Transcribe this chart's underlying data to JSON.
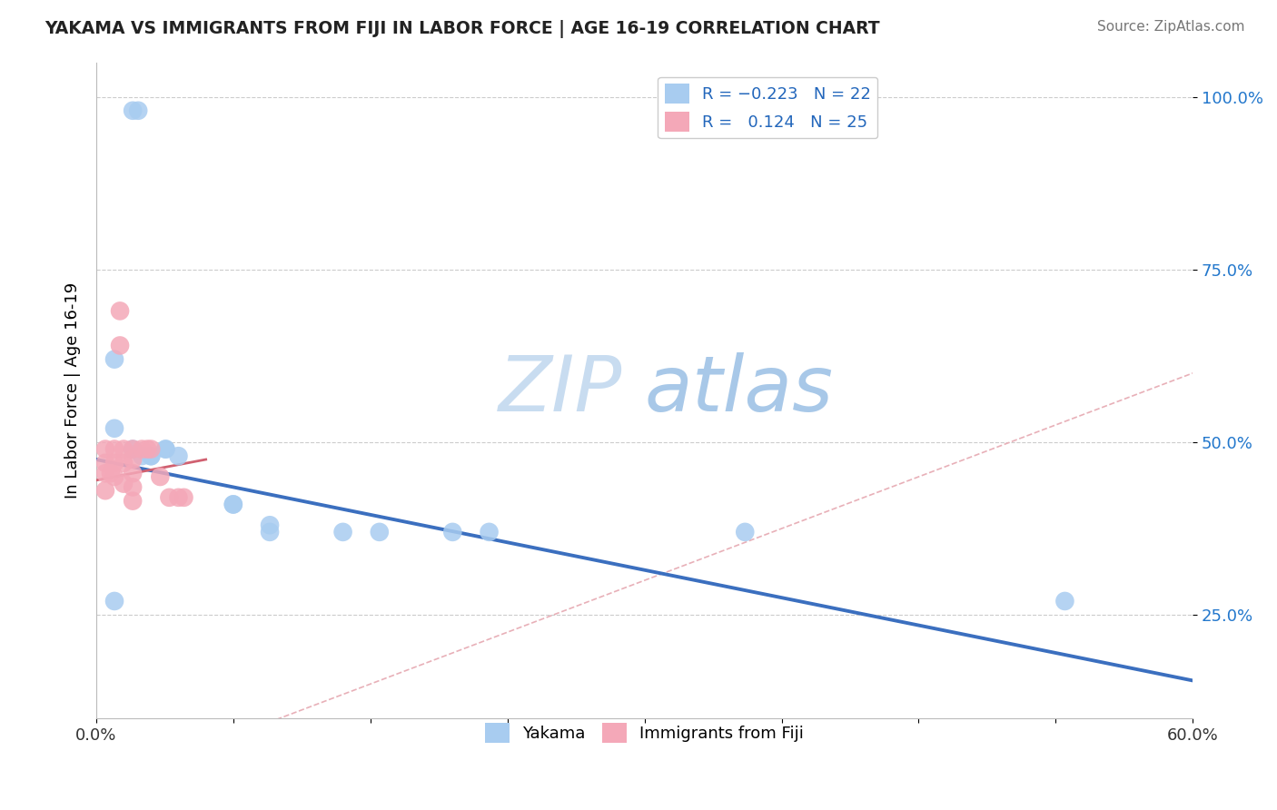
{
  "title": "YAKAMA VS IMMIGRANTS FROM FIJI IN LABOR FORCE | AGE 16-19 CORRELATION CHART",
  "source": "Source: ZipAtlas.com",
  "ylabel": "In Labor Force | Age 16-19",
  "xlim": [
    0.0,
    0.6
  ],
  "ylim": [
    0.1,
    1.05
  ],
  "xticks": [
    0.0,
    0.075,
    0.15,
    0.225,
    0.3,
    0.375,
    0.45,
    0.525,
    0.6
  ],
  "xticklabels": [
    "0.0%",
    "",
    "",
    "",
    "",
    "",
    "",
    "",
    "60.0%"
  ],
  "yticks": [
    0.25,
    0.5,
    0.75,
    1.0
  ],
  "yticklabels": [
    "25.0%",
    "50.0%",
    "75.0%",
    "100.0%"
  ],
  "blue_color": "#A8CCF0",
  "pink_color": "#F4A8B8",
  "trend_blue": "#3B6FBF",
  "trend_pink": "#D06070",
  "diag_color": "#E8B0B8",
  "diag_style": "--",
  "watermark_zip": "ZIP",
  "watermark_atlas": "atlas",
  "watermark_color_zip": "#C8DCF0",
  "watermark_color_atlas": "#A8C8E8",
  "blue_scatter_x": [
    0.02,
    0.023,
    0.01,
    0.01,
    0.02,
    0.025,
    0.03,
    0.03,
    0.038,
    0.038,
    0.045,
    0.075,
    0.075,
    0.095,
    0.095,
    0.135,
    0.155,
    0.195,
    0.215,
    0.355,
    0.53,
    0.01
  ],
  "blue_scatter_y": [
    0.98,
    0.98,
    0.62,
    0.52,
    0.49,
    0.48,
    0.48,
    0.48,
    0.49,
    0.49,
    0.48,
    0.41,
    0.41,
    0.38,
    0.37,
    0.37,
    0.37,
    0.37,
    0.37,
    0.37,
    0.27,
    0.27
  ],
  "pink_scatter_x": [
    0.005,
    0.005,
    0.005,
    0.005,
    0.008,
    0.01,
    0.01,
    0.01,
    0.013,
    0.013,
    0.015,
    0.015,
    0.015,
    0.02,
    0.02,
    0.02,
    0.02,
    0.02,
    0.025,
    0.028,
    0.03,
    0.035,
    0.04,
    0.045,
    0.048
  ],
  "pink_scatter_y": [
    0.49,
    0.47,
    0.455,
    0.43,
    0.455,
    0.49,
    0.47,
    0.45,
    0.69,
    0.64,
    0.49,
    0.47,
    0.44,
    0.49,
    0.475,
    0.455,
    0.435,
    0.415,
    0.49,
    0.49,
    0.49,
    0.45,
    0.42,
    0.42,
    0.42
  ],
  "blue_trend_x": [
    0.0,
    0.6
  ],
  "blue_trend_y": [
    0.475,
    0.155
  ],
  "pink_trend_x": [
    0.0,
    0.06
  ],
  "pink_trend_y": [
    0.445,
    0.475
  ],
  "legend_label1": "Yakama",
  "legend_label2": "Immigrants from Fiji"
}
